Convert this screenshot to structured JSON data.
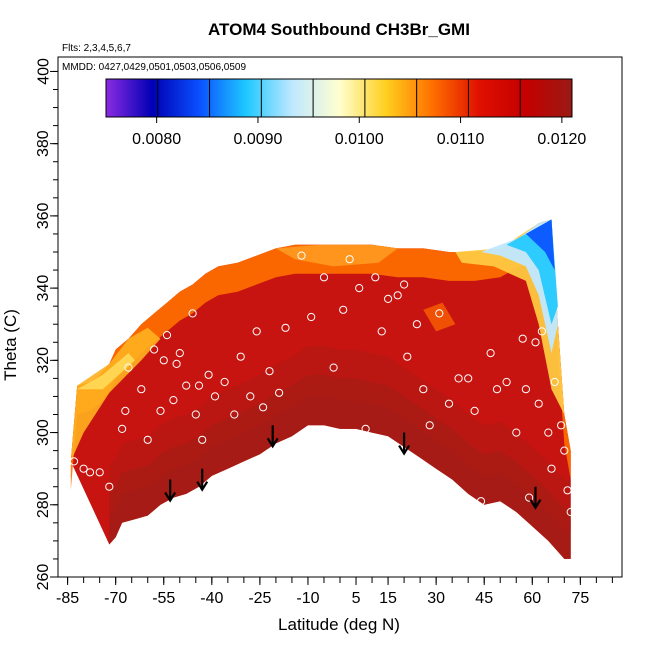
{
  "chart_data": {
    "type": "heatmap",
    "title": "ATOM4 Southbound CH3Br_GMI",
    "subtitle_flights": "Flts: 2,3,4,5,6,7",
    "subtitle_dates": "MMDD: 0427,0429,0501,0503,0506,0509",
    "xlabel": "Latitude (deg N)",
    "ylabel": "Theta (C)",
    "xlim": [
      -88,
      88
    ],
    "ylim": [
      260,
      404
    ],
    "x_ticks": [
      -85,
      -70,
      -55,
      -40,
      -25,
      -10,
      5,
      15,
      30,
      45,
      60,
      75
    ],
    "x_tick_labels": [
      "-85",
      "-70",
      "-55",
      "-40",
      "-25",
      "-10",
      "5",
      "15",
      "30",
      "45",
      "60",
      "75"
    ],
    "y_ticks": [
      260,
      280,
      300,
      320,
      340,
      360,
      380,
      400
    ],
    "y_tick_labels": [
      "260",
      "280",
      "300",
      "320",
      "340",
      "360",
      "380",
      "400"
    ],
    "colorbar": {
      "range": [
        0.0075,
        0.0121
      ],
      "ticks": [
        0.008,
        0.009,
        0.01,
        0.011,
        0.012
      ],
      "tick_labels": [
        "0.0080",
        "0.0090",
        "0.0100",
        "0.0110",
        "0.0120"
      ],
      "colors": [
        "#8a2be2",
        "#0000b4",
        "#0a50ff",
        "#1ec8ff",
        "#bfe8ff",
        "#ffffd0",
        "#ffd020",
        "#ff7000",
        "#e01000",
        "#c40000",
        "#9a1a14"
      ]
    },
    "domain_bottom": [
      [
        -72,
        269
      ],
      [
        -70,
        271
      ],
      [
        -68,
        275
      ],
      [
        -64,
        276
      ],
      [
        -60,
        277
      ],
      [
        -56,
        280
      ],
      [
        -52,
        282
      ],
      [
        -48,
        283
      ],
      [
        -44,
        285
      ],
      [
        -40,
        288
      ],
      [
        -35,
        290
      ],
      [
        -30,
        292
      ],
      [
        -25,
        294
      ],
      [
        -20,
        297
      ],
      [
        -15,
        299
      ],
      [
        -10,
        302
      ],
      [
        -5,
        302
      ],
      [
        0,
        301
      ],
      [
        5,
        301
      ],
      [
        10,
        300
      ],
      [
        15,
        299
      ],
      [
        20,
        296
      ],
      [
        25,
        293
      ],
      [
        30,
        290
      ],
      [
        35,
        287
      ],
      [
        40,
        283
      ],
      [
        45,
        280
      ],
      [
        50,
        281
      ],
      [
        55,
        278
      ],
      [
        60,
        274
      ],
      [
        65,
        270
      ],
      [
        70,
        265
      ],
      [
        72,
        265
      ]
    ],
    "domain_top": [
      [
        -84,
        292
      ],
      [
        -82,
        313
      ],
      [
        -78,
        314
      ],
      [
        -75,
        316
      ],
      [
        -72,
        319
      ],
      [
        -70,
        323
      ],
      [
        -66,
        326
      ],
      [
        -62,
        330
      ],
      [
        -58,
        333
      ],
      [
        -54,
        336
      ],
      [
        -50,
        339
      ],
      [
        -46,
        341
      ],
      [
        -42,
        344
      ],
      [
        -38,
        346
      ],
      [
        -32,
        347
      ],
      [
        -26,
        349
      ],
      [
        -20,
        351
      ],
      [
        -14,
        352
      ],
      [
        -6,
        352
      ],
      [
        2,
        352
      ],
      [
        10,
        352
      ],
      [
        18,
        351
      ],
      [
        26,
        351
      ],
      [
        34,
        350
      ],
      [
        42,
        350
      ],
      [
        50,
        351
      ],
      [
        56,
        354
      ],
      [
        62,
        358
      ],
      [
        66,
        359
      ],
      [
        68,
        330
      ],
      [
        70,
        305
      ],
      [
        72,
        295
      ]
    ],
    "observation_points": [
      [
        -83,
        292
      ],
      [
        -80,
        290
      ],
      [
        -78,
        289
      ],
      [
        -75,
        289
      ],
      [
        -72,
        285
      ],
      [
        -68,
        301
      ],
      [
        -67,
        306
      ],
      [
        -66,
        318
      ],
      [
        -64,
        330
      ],
      [
        -62,
        312
      ],
      [
        -60,
        298
      ],
      [
        -58,
        323
      ],
      [
        -56,
        306
      ],
      [
        -55,
        320
      ],
      [
        -54,
        327
      ],
      [
        -52,
        309
      ],
      [
        -51,
        319
      ],
      [
        -50,
        322
      ],
      [
        -48,
        313
      ],
      [
        -46,
        333
      ],
      [
        -45,
        305
      ],
      [
        -44,
        313
      ],
      [
        -43,
        298
      ],
      [
        -41,
        316
      ],
      [
        -39,
        310
      ],
      [
        -36,
        314
      ],
      [
        -33,
        305
      ],
      [
        -31,
        321
      ],
      [
        -28,
        310
      ],
      [
        -26,
        328
      ],
      [
        -24,
        307
      ],
      [
        -22,
        317
      ],
      [
        -19,
        311
      ],
      [
        -17,
        329
      ],
      [
        -12,
        349
      ],
      [
        -9,
        332
      ],
      [
        -5,
        343
      ],
      [
        -2,
        318
      ],
      [
        1,
        334
      ],
      [
        3,
        348
      ],
      [
        6,
        340
      ],
      [
        8,
        301
      ],
      [
        11,
        343
      ],
      [
        13,
        328
      ],
      [
        15,
        337
      ],
      [
        18,
        338
      ],
      [
        20,
        341
      ],
      [
        21,
        321
      ],
      [
        24,
        330
      ],
      [
        26,
        312
      ],
      [
        28,
        302
      ],
      [
        31,
        333
      ],
      [
        34,
        308
      ],
      [
        37,
        315
      ],
      [
        40,
        315
      ],
      [
        42,
        306
      ],
      [
        44,
        281
      ],
      [
        47,
        322
      ],
      [
        49,
        312
      ],
      [
        52,
        314
      ],
      [
        55,
        300
      ],
      [
        57,
        326
      ],
      [
        58,
        312
      ],
      [
        59,
        282
      ],
      [
        61,
        325
      ],
      [
        62,
        308
      ],
      [
        63,
        328
      ],
      [
        65,
        300
      ],
      [
        66,
        290
      ],
      [
        67,
        314
      ],
      [
        68,
        357
      ],
      [
        69,
        302
      ],
      [
        70,
        295
      ],
      [
        71,
        284
      ],
      [
        72,
        278
      ]
    ],
    "arrows": [
      [
        -53,
        287
      ],
      [
        -43,
        290
      ],
      [
        -21,
        302
      ],
      [
        20,
        300
      ],
      [
        61,
        285
      ]
    ]
  }
}
